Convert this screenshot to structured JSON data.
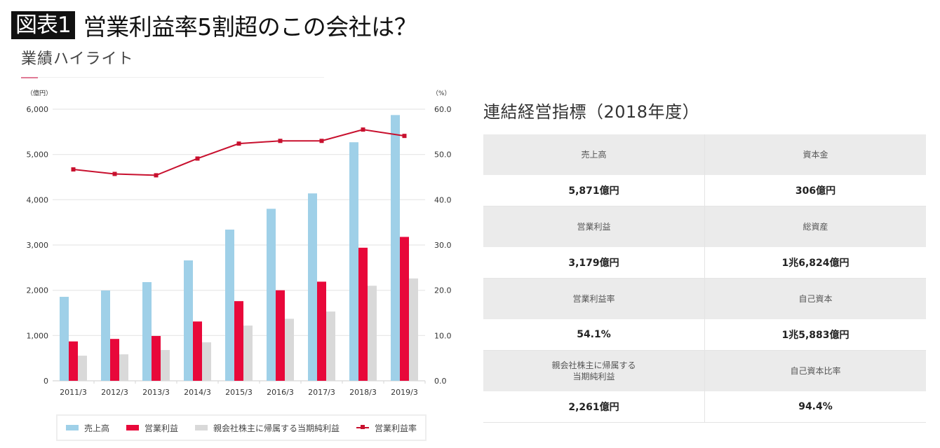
{
  "header": {
    "figure_badge": "図表1",
    "title": "営業利益率5割超のこの会社は？",
    "subtitle": "業績ハイライト"
  },
  "chart_data": {
    "type": "bar",
    "title": "業績ハイライト",
    "categories": [
      "2011/3",
      "2012/3",
      "2013/3",
      "2014/3",
      "2015/3",
      "2016/3",
      "2017/3",
      "2018/3",
      "2019/3"
    ],
    "series": [
      {
        "name": "売上高",
        "kind": "bar",
        "axis": "left",
        "color": "#9fd0e8",
        "values": [
          1855,
          1995,
          2180,
          2660,
          3340,
          3800,
          4140,
          5270,
          5871
        ]
      },
      {
        "name": "営業利益",
        "kind": "bar",
        "axis": "left",
        "color": "#e8083a",
        "values": [
          870,
          925,
          990,
          1310,
          1760,
          2000,
          2190,
          2940,
          3179
        ]
      },
      {
        "name": "親会社株主に帰属する当期純利益",
        "kind": "bar",
        "axis": "left",
        "color": "#d9d9d9",
        "values": [
          555,
          585,
          680,
          850,
          1220,
          1370,
          1530,
          2100,
          2261
        ]
      },
      {
        "name": "営業利益率",
        "kind": "line",
        "axis": "right",
        "color": "#c8102e",
        "values": [
          46.7,
          45.7,
          45.4,
          49.1,
          52.4,
          53.0,
          53.0,
          55.5,
          54.1
        ]
      }
    ],
    "y_left": {
      "unit_label": "（億円）",
      "range": [
        0,
        6000
      ],
      "ticks": [
        "0",
        "1,000",
        "2,000",
        "3,000",
        "4,000",
        "5,000",
        "6,000"
      ]
    },
    "y_right": {
      "unit_label": "（%）",
      "range": [
        0,
        60
      ],
      "ticks": [
        "0.0",
        "10.0",
        "20.0",
        "30.0",
        "40.0",
        "50.0",
        "60.0"
      ]
    },
    "grid": true,
    "legend_position": "bottom"
  },
  "kpi": {
    "title": "連結経営指標（2018年度）",
    "rows": [
      {
        "left_label": "売上高",
        "left_value": "5,871億円",
        "right_label": "資本金",
        "right_value": "306億円"
      },
      {
        "left_label": "営業利益",
        "left_value": "3,179億円",
        "right_label": "総資産",
        "right_value": "1兆6,824億円"
      },
      {
        "left_label": "営業利益率",
        "left_value": "54.1%",
        "right_label": "自己資本",
        "right_value": "1兆5,883億円"
      },
      {
        "left_label": "親会社株主に帰属する\n当期純利益",
        "left_value": "2,261億円",
        "right_label": "自己資本比率",
        "right_value": "94.4%"
      }
    ]
  }
}
